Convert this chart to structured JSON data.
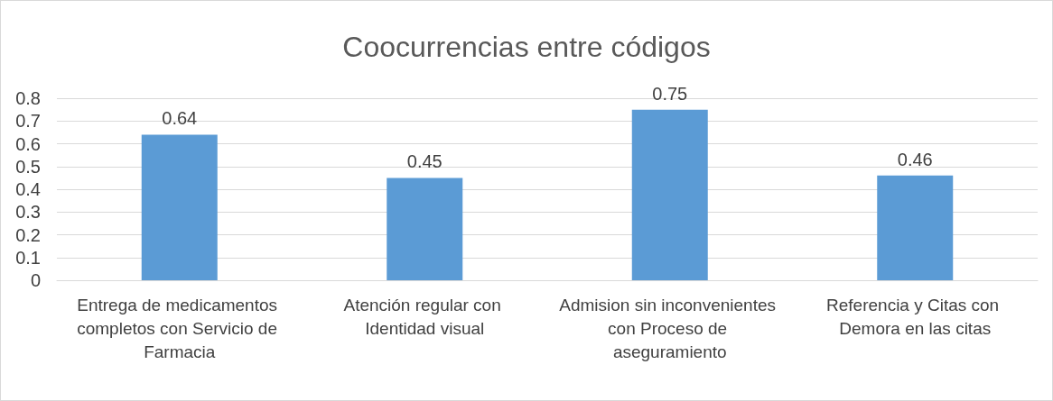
{
  "chart_data": {
    "type": "bar",
    "title": "Coocurrencias entre códigos",
    "categories": [
      "Entrega de medicamentos completos con Servicio de Farmacia",
      "Atención regular con Identidad visual",
      "Admision sin inconvenientes con Proceso de aseguramiento",
      "Referencia y Citas con Demora en las citas"
    ],
    "values": [
      0.64,
      0.45,
      0.75,
      0.46
    ],
    "color": "#5b9bd5",
    "ylim": [
      0,
      0.8
    ],
    "yticks": [
      0,
      0.1,
      0.2,
      0.3,
      0.4,
      0.5,
      0.6,
      0.7,
      0.8
    ],
    "grid": "y",
    "data_labels": true
  }
}
